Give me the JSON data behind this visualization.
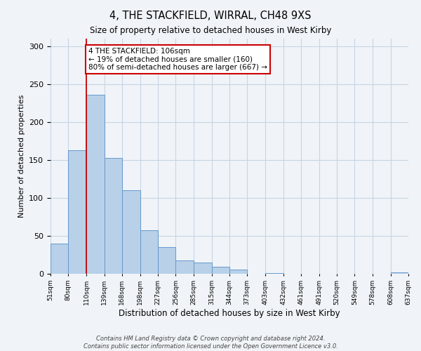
{
  "title": "4, THE STACKFIELD, WIRRAL, CH48 9XS",
  "subtitle": "Size of property relative to detached houses in West Kirby",
  "xlabel": "Distribution of detached houses by size in West Kirby",
  "ylabel": "Number of detached properties",
  "bin_labels": [
    "51sqm",
    "80sqm",
    "110sqm",
    "139sqm",
    "168sqm",
    "198sqm",
    "227sqm",
    "256sqm",
    "285sqm",
    "315sqm",
    "344sqm",
    "373sqm",
    "403sqm",
    "432sqm",
    "461sqm",
    "491sqm",
    "520sqm",
    "549sqm",
    "578sqm",
    "608sqm",
    "637sqm"
  ],
  "bin_edges": [
    51,
    80,
    110,
    139,
    168,
    198,
    227,
    256,
    285,
    315,
    344,
    373,
    403,
    432,
    461,
    491,
    520,
    549,
    578,
    608,
    637
  ],
  "bar_heights": [
    40,
    163,
    236,
    153,
    110,
    57,
    35,
    18,
    15,
    9,
    6,
    0,
    1,
    0,
    0,
    0,
    0,
    0,
    0,
    2,
    0
  ],
  "bar_color": "#b8d0e8",
  "bar_edge_color": "#6699cc",
  "vline_x": 110,
  "vline_color": "#cc0000",
  "annotation_title": "4 THE STACKFIELD: 106sqm",
  "annotation_line1": "← 19% of detached houses are smaller (160)",
  "annotation_line2": "80% of semi-detached houses are larger (667) →",
  "annotation_box_edge": "#cc0000",
  "ylim": [
    0,
    310
  ],
  "yticks": [
    0,
    50,
    100,
    150,
    200,
    250,
    300
  ],
  "footer_line1": "Contains HM Land Registry data © Crown copyright and database right 2024.",
  "footer_line2": "Contains public sector information licensed under the Open Government Licence v3.0.",
  "background_color": "#f0f4f8",
  "grid_color": "#c8d4e4"
}
